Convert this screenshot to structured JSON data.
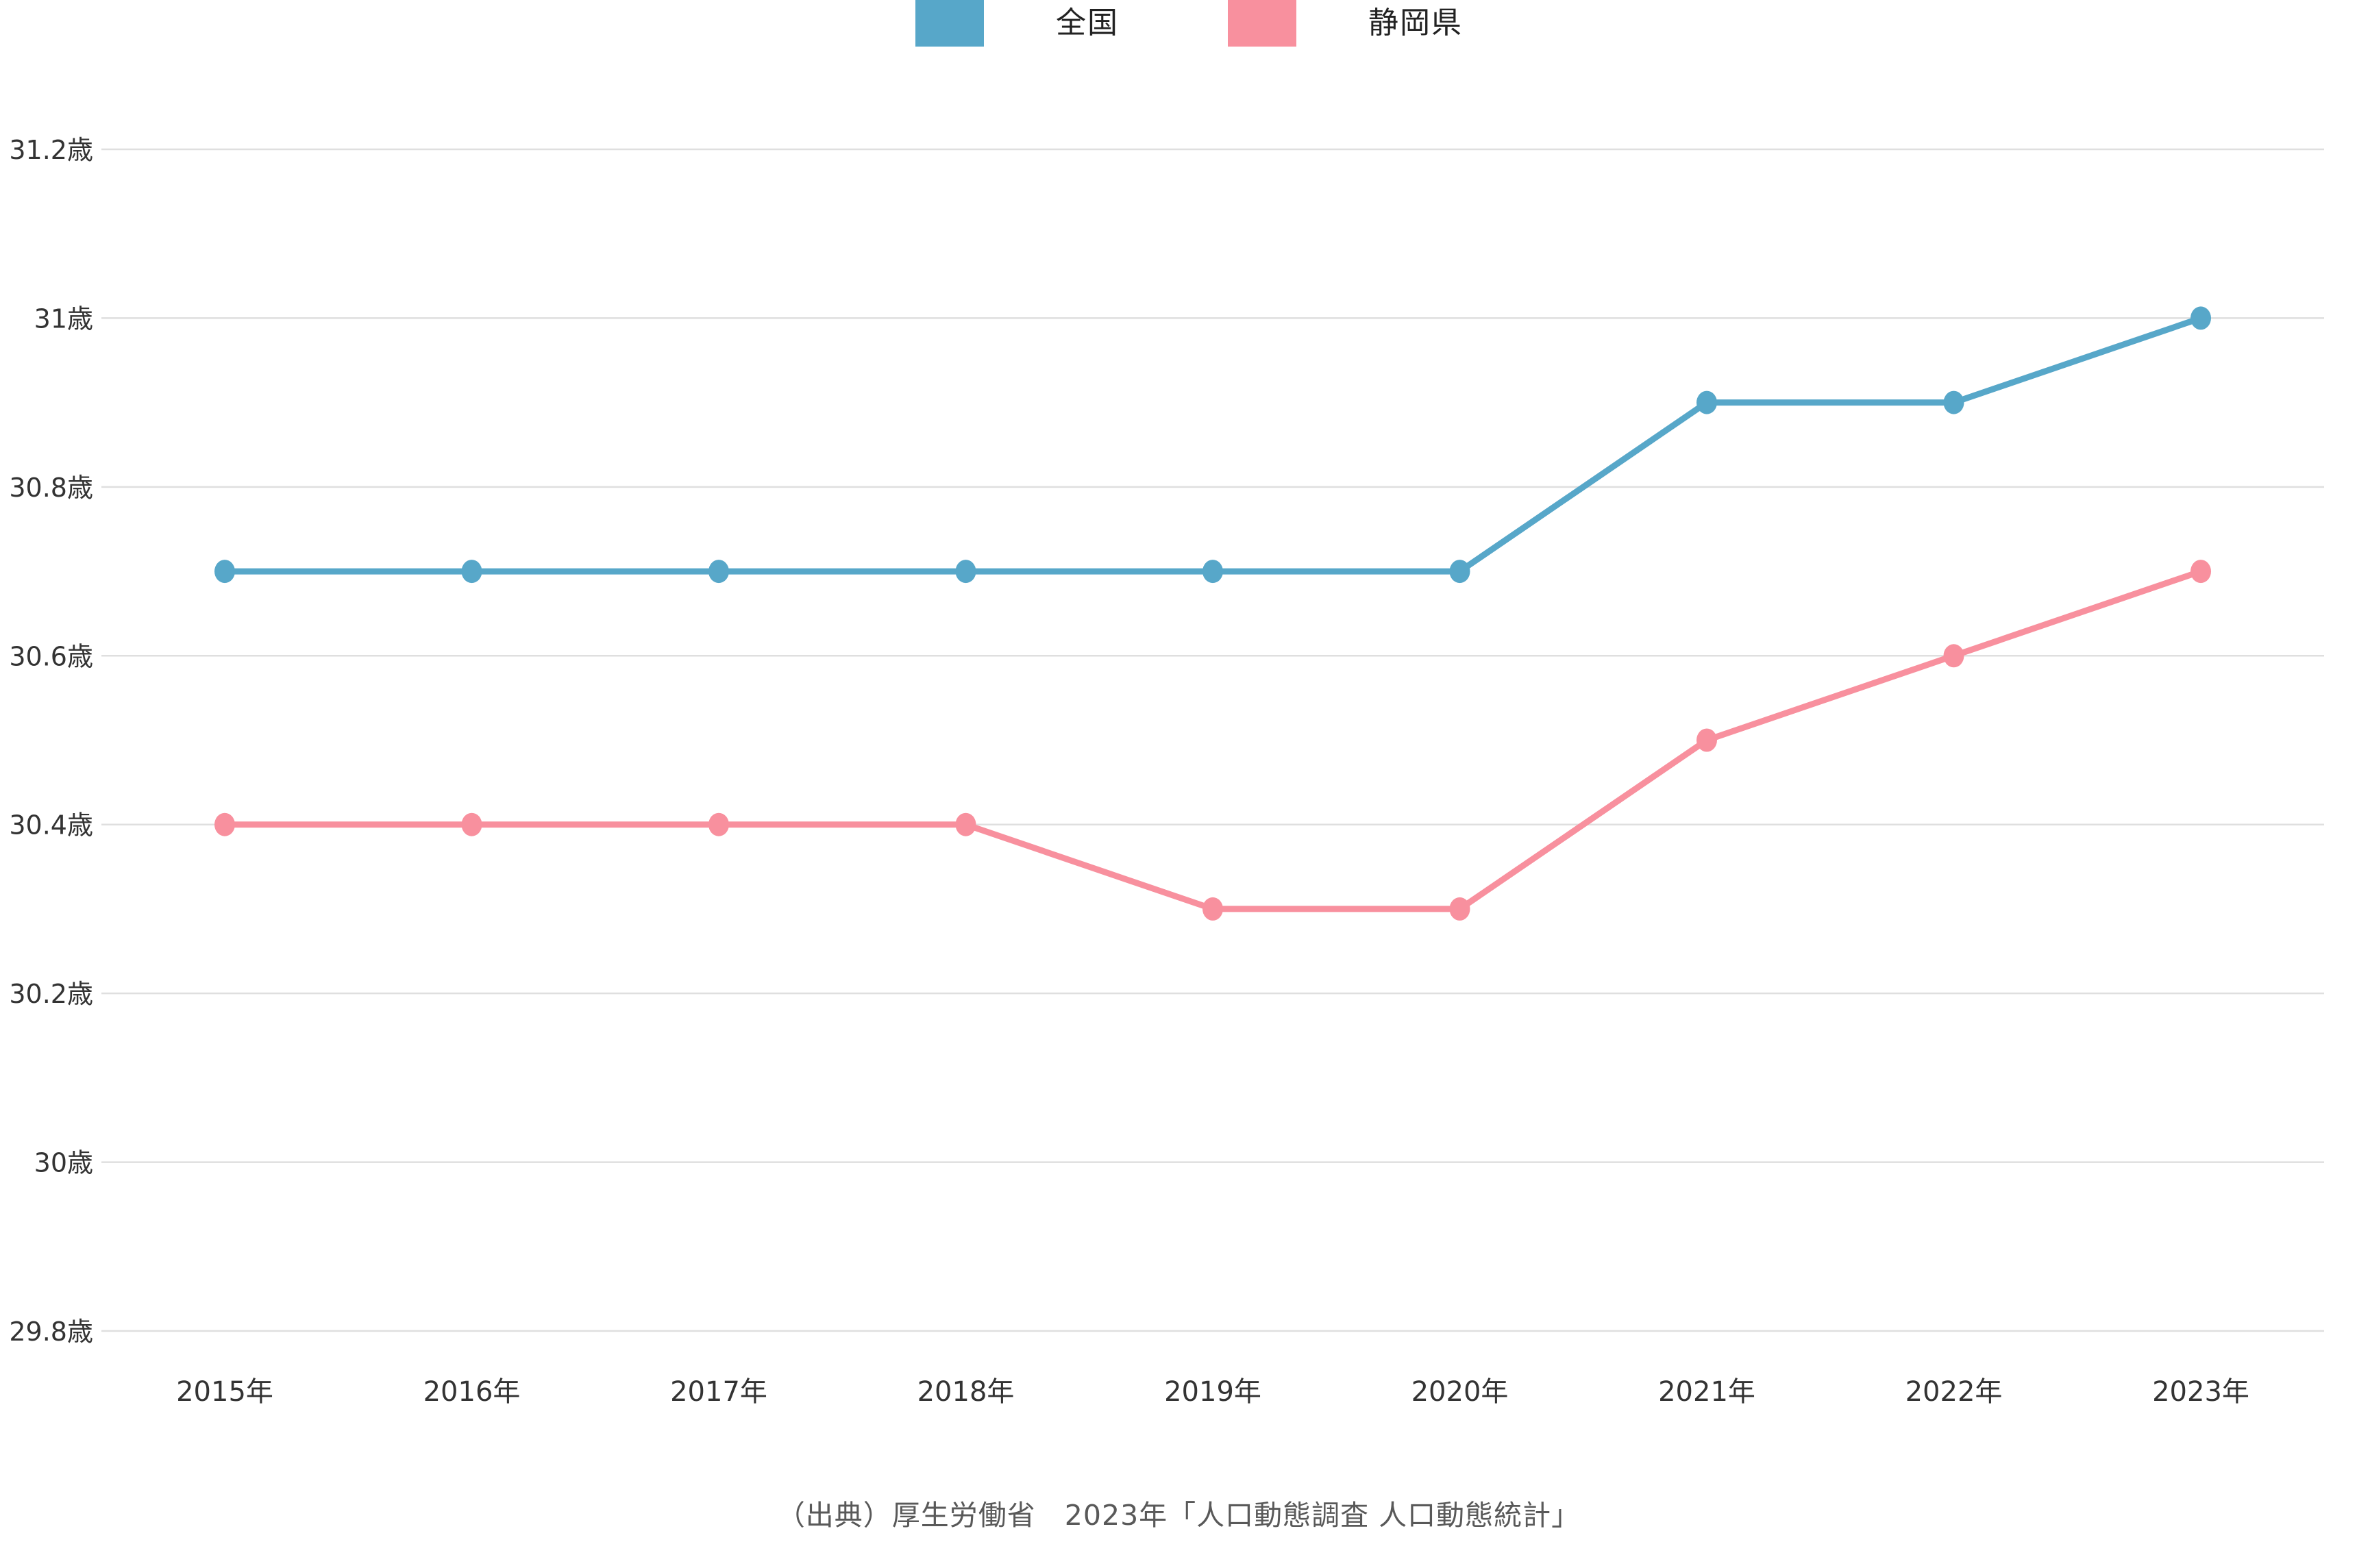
{
  "legend": {
    "position": "top"
  },
  "source": {
    "text": "（出典）厚生労働省　2023年「人口動態調査 人口動態統計」"
  },
  "colors": {
    "national": "#57A7C9",
    "shizuoka": "#F8909E",
    "gridline": "#DFDFDF",
    "axis_text": "#333333",
    "source_text": "#595959"
  },
  "chart_data": {
    "type": "line",
    "title": "",
    "xlabel": "",
    "ylabel": "",
    "unit": "歳",
    "grid": true,
    "legend_position": "top",
    "categories": [
      "2015年",
      "2016年",
      "2017年",
      "2018年",
      "2019年",
      "2020年",
      "2021年",
      "2022年",
      "2023年"
    ],
    "ylim": [
      29.8,
      31.2
    ],
    "yticks": [
      {
        "value": 31.2,
        "label": "31.2歳"
      },
      {
        "value": 31.0,
        "label": "31歳"
      },
      {
        "value": 30.8,
        "label": "30.8歳"
      },
      {
        "value": 30.6,
        "label": "30.6歳"
      },
      {
        "value": 30.4,
        "label": "30.4歳"
      },
      {
        "value": 30.2,
        "label": "30.2歳"
      },
      {
        "value": 30.0,
        "label": "30歳"
      },
      {
        "value": 29.8,
        "label": "29.8歳"
      }
    ],
    "series": [
      {
        "name": "全国",
        "color": "#57A7C9",
        "values": [
          30.7,
          30.7,
          30.7,
          30.7,
          30.7,
          30.7,
          30.9,
          30.9,
          31.0
        ]
      },
      {
        "name": "静岡県",
        "color": "#F8909E",
        "values": [
          30.4,
          30.4,
          30.4,
          30.4,
          30.3,
          30.3,
          30.5,
          30.6,
          30.7
        ]
      }
    ]
  }
}
